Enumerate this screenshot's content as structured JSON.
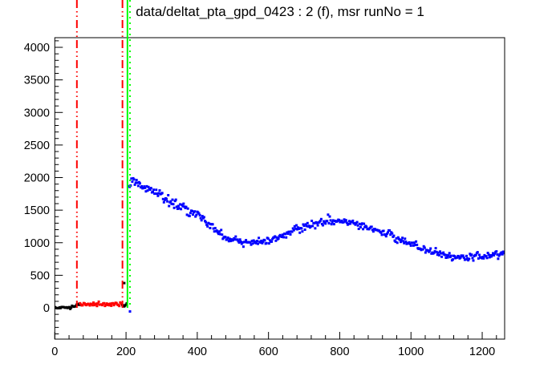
{
  "colors": {
    "background": "#ffffff",
    "axis": "#000000",
    "signal_data": "#0000ff",
    "background_range": "#ff0000",
    "t0_line": "#00ff00",
    "text": "#000000"
  },
  "chart_data": {
    "type": "scatter",
    "title": "data/deltat_pta_gpd_0423 : 2 (f), msr runNo = 1",
    "xlabel": "",
    "ylabel": "",
    "xlim": [
      0,
      1263
    ],
    "ylim": [
      -480,
      4148
    ],
    "x_ticks_major": [
      0,
      200,
      400,
      600,
      800,
      1000,
      1200
    ],
    "x_minor_step": 40,
    "y_ticks_major": [
      0,
      500,
      1000,
      1500,
      2000,
      2500,
      3000,
      3500,
      4000
    ],
    "y_minor_step": 100,
    "grid": false,
    "legend": null,
    "marker": "square",
    "marker_size_px": 3,
    "vlines": [
      {
        "name": "background-start-line",
        "x": 62,
        "color": "#ff0000",
        "style": "dash-dot-dot"
      },
      {
        "name": "background-end-line",
        "x": 190,
        "color": "#ff0000",
        "style": "dash-dot-dot"
      },
      {
        "name": "t0-line",
        "x": 204,
        "color": "#00ff00",
        "style": "solid"
      },
      {
        "name": "data-start-line",
        "x": 211,
        "color": "#00ff00",
        "style": "dotted"
      }
    ],
    "series": [
      {
        "name": "pre-t0-black",
        "color": "#000000",
        "x_range": [
          1,
          71
        ],
        "step": 2.5,
        "noise": 9,
        "anchors": [
          [
            0,
            4
          ],
          [
            44,
            6
          ],
          [
            50,
            22
          ],
          [
            60,
            42
          ],
          [
            71,
            52
          ]
        ]
      },
      {
        "name": "background-window-red",
        "color": "#ff0000",
        "x_range": [
          71,
          190
        ],
        "step": 2.5,
        "noise": 16,
        "anchors": [
          [
            71,
            55
          ],
          [
            130,
            58
          ],
          [
            190,
            58
          ]
        ]
      },
      {
        "name": "gap-black",
        "color": "#000000",
        "x_range": [
          190,
          204
        ],
        "step": 2.4,
        "noise": 22,
        "anchors": [
          [
            190,
            30
          ],
          [
            204,
            45
          ]
        ]
      },
      {
        "name": "signal-blue",
        "color": "#0000ff",
        "x_range": [
          208,
          1263
        ],
        "step": 2.4,
        "noise": "poisson",
        "anchors": [
          [
            208,
            1860
          ],
          [
            216,
            1930
          ],
          [
            228,
            1925
          ],
          [
            242,
            1880
          ],
          [
            258,
            1845
          ],
          [
            280,
            1775
          ],
          [
            310,
            1690
          ],
          [
            340,
            1605
          ],
          [
            370,
            1515
          ],
          [
            400,
            1425
          ],
          [
            430,
            1285
          ],
          [
            460,
            1165
          ],
          [
            490,
            1055
          ],
          [
            520,
            1000
          ],
          [
            550,
            988
          ],
          [
            580,
            1008
          ],
          [
            610,
            1058
          ],
          [
            640,
            1118
          ],
          [
            670,
            1178
          ],
          [
            700,
            1238
          ],
          [
            730,
            1290
          ],
          [
            760,
            1322
          ],
          [
            790,
            1338
          ],
          [
            820,
            1318
          ],
          [
            850,
            1282
          ],
          [
            880,
            1232
          ],
          [
            910,
            1178
          ],
          [
            940,
            1118
          ],
          [
            970,
            1052
          ],
          [
            1000,
            985
          ],
          [
            1030,
            920
          ],
          [
            1060,
            858
          ],
          [
            1090,
            815
          ],
          [
            1120,
            782
          ],
          [
            1150,
            765
          ],
          [
            1180,
            775
          ],
          [
            1210,
            798
          ],
          [
            1240,
            822
          ],
          [
            1263,
            845
          ]
        ]
      }
    ],
    "points": [
      {
        "name": "stray-black-point",
        "x": 195,
        "y": 380,
        "color": "#000000"
      },
      {
        "name": "t0-bin-point",
        "x": 211,
        "y": -55,
        "color": "#0000ff"
      }
    ]
  }
}
